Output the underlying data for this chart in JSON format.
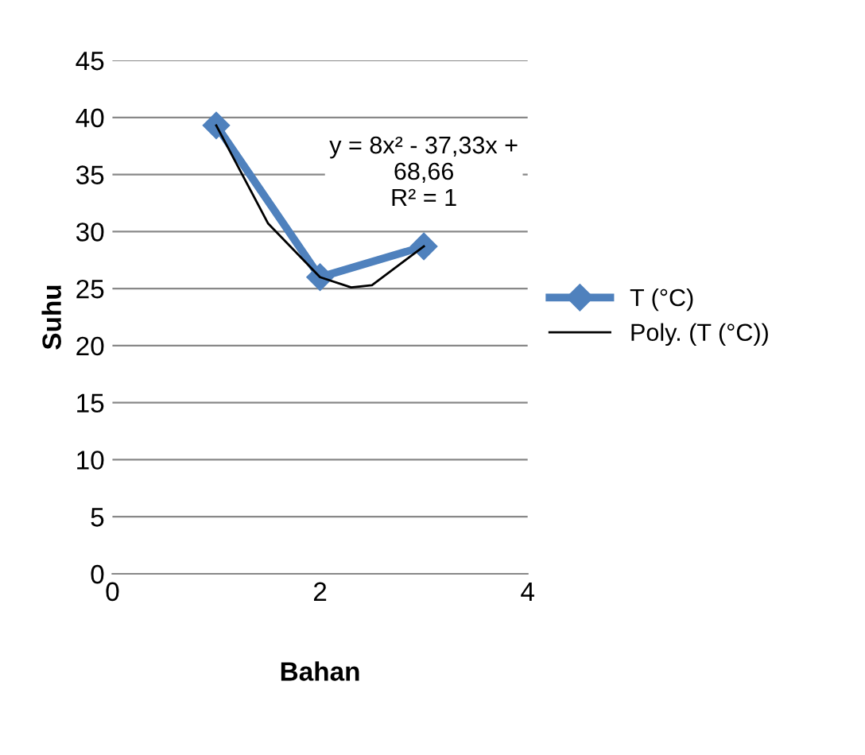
{
  "chart_data": {
    "type": "line",
    "xlabel": "Bahan",
    "ylabel": "Suhu",
    "xlim": [
      0,
      4
    ],
    "xticks": [
      0,
      2,
      4
    ],
    "ylim": [
      0,
      45
    ],
    "yticks": [
      0,
      5,
      10,
      15,
      20,
      25,
      30,
      35,
      40,
      45
    ],
    "grid": "y",
    "legend": "right",
    "series": [
      {
        "name": "T (°C)",
        "color": "#4f81bd",
        "x": [
          1,
          2,
          3
        ],
        "values": [
          39.3,
          26,
          28.7
        ],
        "marker": "diamond",
        "line_style": "solid"
      },
      {
        "name": "Poly. (T (°C))",
        "color": "#000000",
        "x": [
          1,
          1.5,
          2,
          2.3,
          2.5,
          3
        ],
        "values": [
          39.3,
          30.7,
          26,
          25.1,
          25.3,
          28.7
        ],
        "marker": "none",
        "line_style": "solid"
      }
    ],
    "annotations": [
      "y = 8x² - 37,33x +\n68,66\nR² = 1"
    ]
  }
}
